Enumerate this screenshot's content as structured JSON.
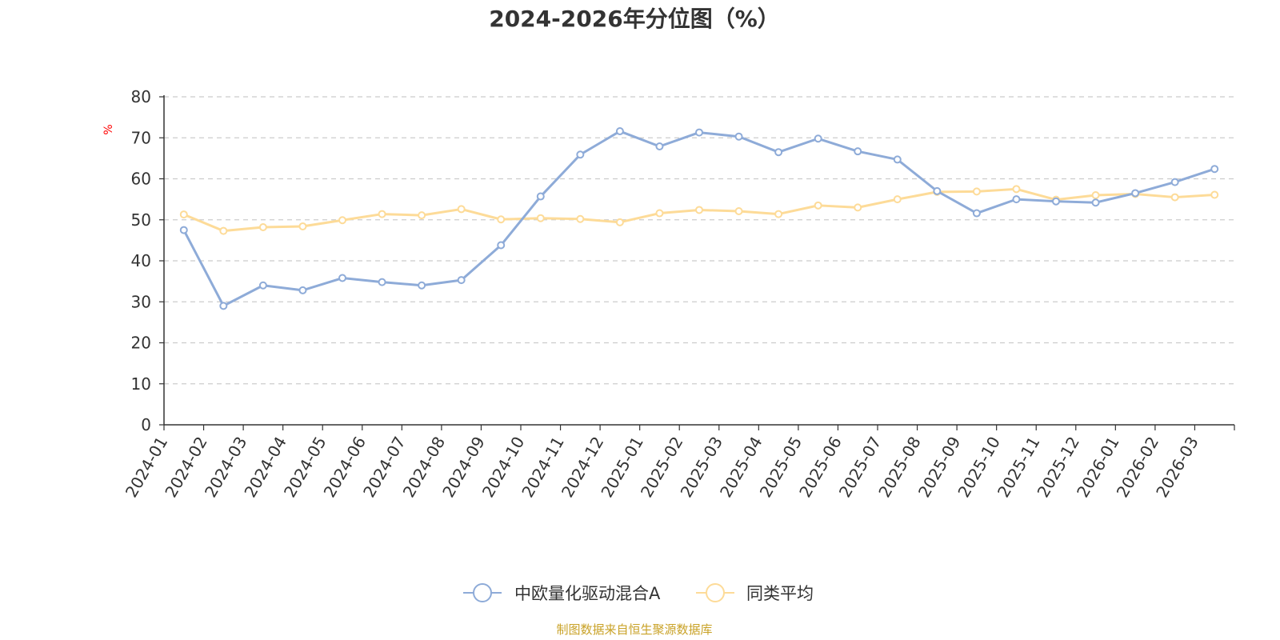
{
  "chart_data": {
    "type": "line",
    "title": "2024-2026年分位图（%）",
    "y_unit": "%",
    "ylim": [
      0,
      80
    ],
    "y_ticks": [
      0,
      10,
      20,
      30,
      40,
      50,
      60,
      70,
      80
    ],
    "grid": "horizontal dashed",
    "legend_position": "bottom-center",
    "categories": [
      "2024-01",
      "2024-02",
      "2024-03",
      "2024-04",
      "2024-05",
      "2024-06",
      "2024-07",
      "2024-08",
      "2024-09",
      "2024-10",
      "2024-11",
      "2024-12",
      "2025-01",
      "2025-02",
      "2025-03",
      "2025-04",
      "2025-05",
      "2025-06",
      "2025-07",
      "2025-08",
      "2025-09",
      "2025-10",
      "2025-11",
      "2025-12",
      "2026-01",
      "2026-02",
      "2026-03"
    ],
    "series": [
      {
        "name": "中欧量化驱动混合A",
        "color": "#8eabd8",
        "values": [
          47.5,
          29.0,
          34.0,
          32.8,
          35.8,
          34.8,
          34.0,
          35.3,
          43.8,
          55.7,
          65.9,
          71.6,
          67.9,
          71.3,
          70.3,
          66.5,
          69.8,
          66.7,
          64.7,
          57.0,
          51.6,
          55.0,
          54.5,
          54.2,
          56.5,
          59.2,
          62.4
        ]
      },
      {
        "name": "同类平均",
        "color": "#fddb98",
        "values": [
          51.3,
          47.3,
          48.2,
          48.4,
          49.9,
          51.4,
          51.1,
          52.6,
          50.1,
          50.4,
          50.2,
          49.4,
          51.6,
          52.4,
          52.1,
          51.4,
          53.5,
          53.0,
          55.0,
          56.8,
          56.9,
          57.5,
          54.9,
          56.0,
          56.3,
          55.5,
          56.1
        ]
      }
    ]
  },
  "source_text": "制图数据来自恒生聚源数据库"
}
